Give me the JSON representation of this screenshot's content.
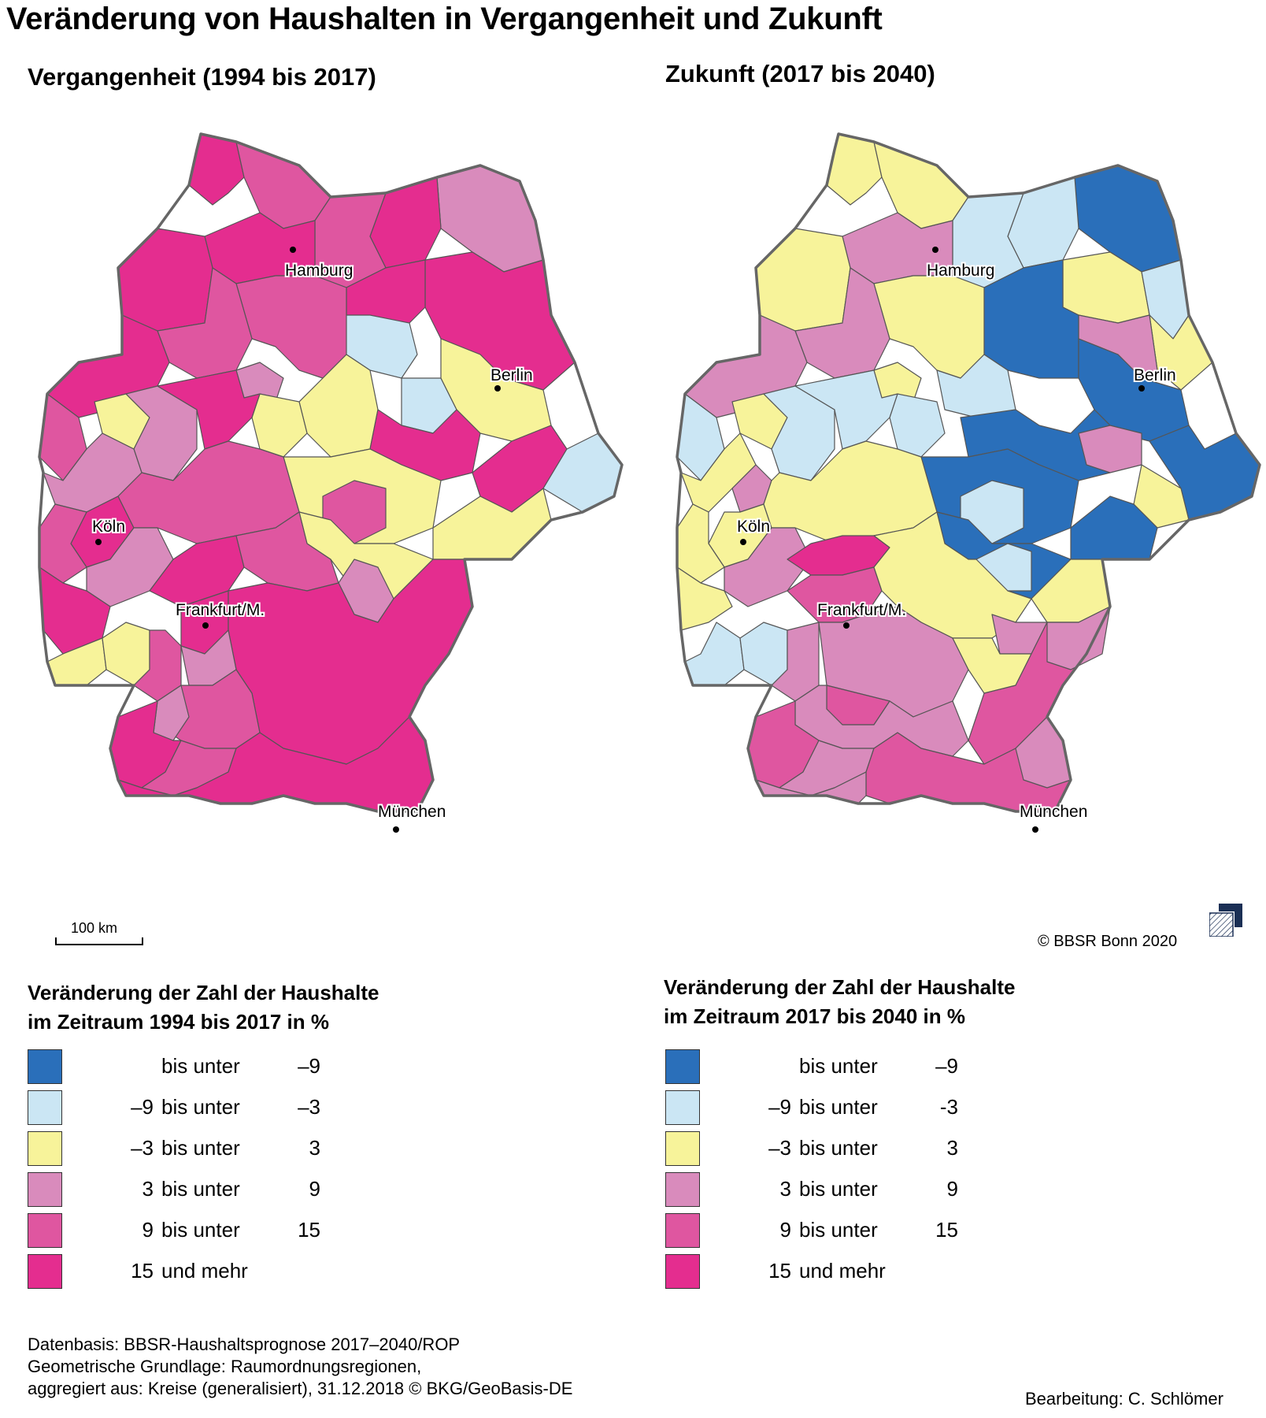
{
  "title": "Veränderung von Haushalten in Vergangenheit und Zukunft",
  "maps": {
    "left": {
      "title": "Vergangenheit (1994 bis 2017)",
      "cities": [
        "Hamburg",
        "Berlin",
        "Köln",
        "Frankfurt/M.",
        "München"
      ]
    },
    "right": {
      "title": "Zukunft (2017 bis 2040)",
      "cities": [
        "Hamburg",
        "Berlin",
        "Köln",
        "Frankfurt/M.",
        "München"
      ]
    }
  },
  "colors": {
    "lt_minus9": "#2a6fba",
    "minus9_minus3": "#cbe6f4",
    "minus3_3": "#f7f39a",
    "3_9": "#d98bbc",
    "9_15": "#df56a0",
    "15_plus": "#e42d8f"
  },
  "legend_left": {
    "title_line1": "Veränderung der Zahl der Haushalte",
    "title_line2": "im Zeitraum 1994 bis 2017 in %",
    "rows": [
      {
        "from": "",
        "mid": "bis unter",
        "to": "–9",
        "color_key": "lt_minus9"
      },
      {
        "from": "–9",
        "mid": "bis unter",
        "to": "–3",
        "color_key": "minus9_minus3"
      },
      {
        "from": "–3",
        "mid": "bis unter",
        "to": "3",
        "color_key": "minus3_3"
      },
      {
        "from": "3",
        "mid": "bis unter",
        "to": "9",
        "color_key": "3_9"
      },
      {
        "from": "9",
        "mid": "bis unter",
        "to": "15",
        "color_key": "9_15"
      },
      {
        "from": "15",
        "mid": "und mehr",
        "to": "",
        "color_key": "15_plus"
      }
    ]
  },
  "legend_right": {
    "title_line1": "Veränderung der Zahl der Haushalte",
    "title_line2": "im Zeitraum 2017 bis 2040 in %",
    "rows": [
      {
        "from": "",
        "mid": "bis unter",
        "to": "–9",
        "color_key": "lt_minus9"
      },
      {
        "from": "–9",
        "mid": "bis unter",
        "to": "-3",
        "color_key": "minus9_minus3"
      },
      {
        "from": "–3",
        "mid": "bis unter",
        "to": "3",
        "color_key": "minus3_3"
      },
      {
        "from": "3",
        "mid": "bis unter",
        "to": "9",
        "color_key": "3_9"
      },
      {
        "from": "9",
        "mid": "bis unter",
        "to": "15",
        "color_key": "9_15"
      },
      {
        "from": "15",
        "mid": "und mehr",
        "to": "",
        "color_key": "15_plus"
      }
    ]
  },
  "scale_label": "100 km",
  "copyright": "© BBSR Bonn 2020",
  "source": {
    "line1": "Datenbasis: BBSR-Haushaltsprognose 2017–2040/ROP",
    "line2": "Geometrische Grundlage: Raumordnungsregionen,",
    "line3": "aggregiert aus: Kreise (generalisiert), 31.12.2018 © BKG/GeoBasis-DE"
  },
  "editor": "Bearbeitung: C. Schlömer"
}
